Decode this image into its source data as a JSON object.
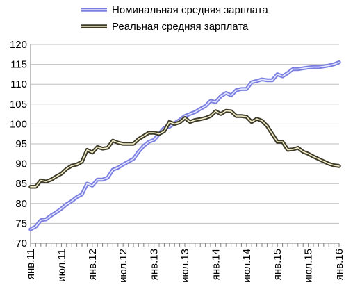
{
  "chart_data": {
    "type": "line",
    "x": [
      "янв.11",
      "фев.11",
      "мар.11",
      "апр.11",
      "май.11",
      "июн.11",
      "июл.11",
      "авг.11",
      "сен.11",
      "окт.11",
      "ноя.11",
      "дек.11",
      "янв.12",
      "фев.12",
      "мар.12",
      "апр.12",
      "май.12",
      "июн.12",
      "июл.12",
      "авг.12",
      "сен.12",
      "окт.12",
      "ноя.12",
      "дек.12",
      "янв.13",
      "фев.13",
      "мар.13",
      "апр.13",
      "май.13",
      "июн.13",
      "июл.13",
      "авг.13",
      "сен.13",
      "окт.13",
      "ноя.13",
      "дек.13",
      "янв.14",
      "фев.14",
      "мар.14",
      "апр.14",
      "май.14",
      "июн.14",
      "июл.14",
      "авг.14",
      "сен.14",
      "окт.14",
      "ноя.14",
      "дек.14",
      "янв.15",
      "фев.15",
      "мар.15",
      "апр.15",
      "май.15",
      "июн.15",
      "июл.15",
      "авг.15",
      "сен.15",
      "окт.15",
      "ноя.15",
      "дек.15",
      "янв.16"
    ],
    "x_tick_labels": [
      "янв.11",
      "июл.11",
      "янв.12",
      "июл.12",
      "янв.13",
      "июл.13",
      "янв.14",
      "июл.14",
      "янв.15",
      "июл.15",
      "янв.16"
    ],
    "series": [
      {
        "name": "Номинальная средняя зарплата",
        "color": "#7b7fe0",
        "style": "double-line",
        "values": [
          73.5,
          74.2,
          75.8,
          76.0,
          77.0,
          77.8,
          78.7,
          79.8,
          80.6,
          81.6,
          82.3,
          85.0,
          84.5,
          86.0,
          86.0,
          86.5,
          88.5,
          89.0,
          89.8,
          90.5,
          91.2,
          93.0,
          94.5,
          95.5,
          96.0,
          97.5,
          99.0,
          99.3,
          100.2,
          101.0,
          102.0,
          102.5,
          103.0,
          103.8,
          104.5,
          105.8,
          105.5,
          107.0,
          107.8,
          107.2,
          108.5,
          108.8,
          108.8,
          110.5,
          110.8,
          111.2,
          111.0,
          111.0,
          112.5,
          112.0,
          112.8,
          113.8,
          113.8,
          114.0,
          114.2,
          114.3,
          114.3,
          114.5,
          114.7,
          115.0,
          115.5
        ]
      },
      {
        "name": "Реальная средняя зарплата",
        "color": "#3d3a2a",
        "style": "double-line",
        "values": [
          84.2,
          84.2,
          85.8,
          85.5,
          86.0,
          86.8,
          87.5,
          88.7,
          89.5,
          89.8,
          90.5,
          93.5,
          92.8,
          94.2,
          93.8,
          94.0,
          95.8,
          95.3,
          95.0,
          95.0,
          95.0,
          96.2,
          97.0,
          97.8,
          97.8,
          97.5,
          98.2,
          100.5,
          100.0,
          100.4,
          101.5,
          100.5,
          101.0,
          101.2,
          101.5,
          102.0,
          103.2,
          102.5,
          103.3,
          103.2,
          102.0,
          102.0,
          101.8,
          100.5,
          101.3,
          100.8,
          99.5,
          97.5,
          95.5,
          95.5,
          93.5,
          93.6,
          94.0,
          93.0,
          92.5,
          91.8,
          91.2,
          90.6,
          90.0,
          89.6,
          89.4
        ]
      }
    ],
    "y_ticks": [
      70,
      75,
      80,
      85,
      90,
      95,
      100,
      105,
      110,
      115,
      120
    ],
    "ylim": [
      70,
      120
    ],
    "grid": "horizontal",
    "legend_position": "top"
  }
}
